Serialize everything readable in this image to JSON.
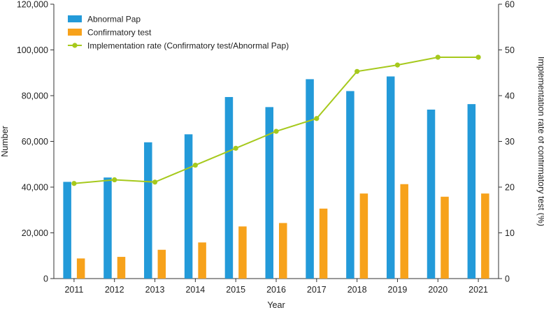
{
  "chart_data": {
    "type": "bar",
    "categories": [
      "2011",
      "2012",
      "2013",
      "2014",
      "2015",
      "2016",
      "2017",
      "2018",
      "2019",
      "2020",
      "2021"
    ],
    "series": [
      {
        "name": "Abnormal Pap",
        "kind": "bar",
        "axis": "left",
        "color": "#239ad9",
        "values": [
          42300,
          44200,
          59600,
          63100,
          79400,
          75000,
          87200,
          82000,
          88400,
          73900,
          76300
        ]
      },
      {
        "name": "Confirmatory test",
        "kind": "bar",
        "axis": "left",
        "color": "#f7a21b",
        "values": [
          8800,
          9500,
          12600,
          15800,
          22800,
          24300,
          30600,
          37200,
          41300,
          35800,
          37200
        ]
      },
      {
        "name": "Implementation rate (Confirmatory test/Abnormal Pap)",
        "kind": "line",
        "axis": "right",
        "color": "#a6c91c",
        "values": [
          20.8,
          21.6,
          21.1,
          24.8,
          28.5,
          32.2,
          35.0,
          45.3,
          46.7,
          48.4,
          48.4
        ]
      }
    ],
    "xlabel": "Year",
    "ylabel": "Number",
    "y2label": "Implementation rate of confirmatory test (%)",
    "ylim": [
      0,
      120000
    ],
    "y2lim": [
      0,
      60
    ],
    "yticks": [
      "0",
      "20,000",
      "40,000",
      "60,000",
      "80,000",
      "100,000",
      "120,000"
    ],
    "y2ticks": [
      "0",
      "10",
      "20",
      "30",
      "40",
      "50",
      "60"
    ],
    "legend_position": "top-left",
    "grid": false
  }
}
